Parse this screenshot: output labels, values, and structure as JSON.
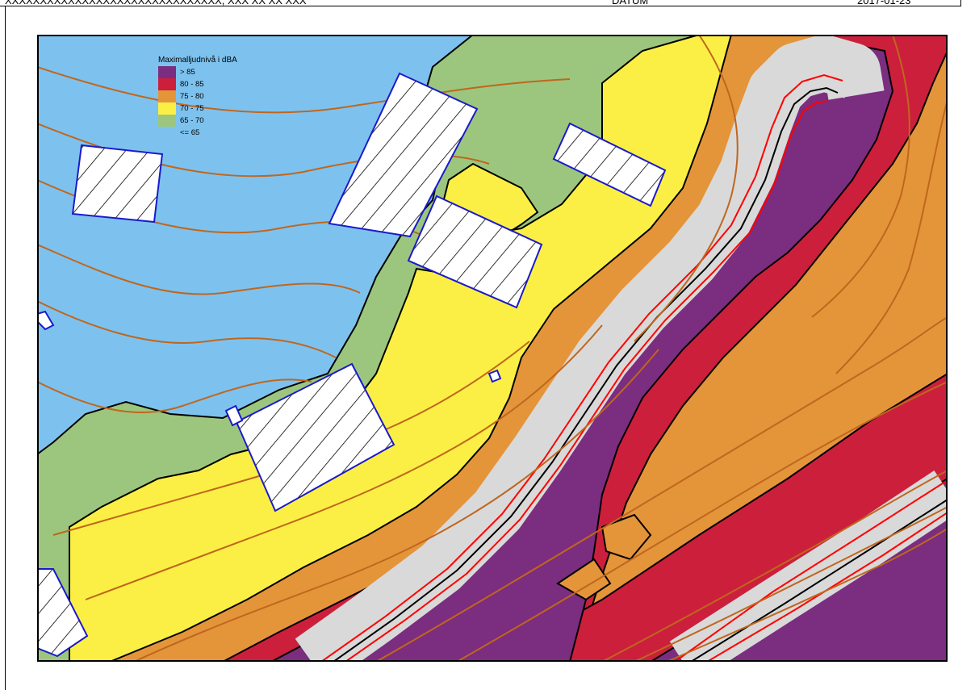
{
  "header": {
    "left_text": "XXXXXXXXXXXXXXXXXXXXXXXXXXXXXXX, XXX XX XX XXX",
    "middle_text": "DATUM",
    "right_text": "2017-01-23"
  },
  "legend": {
    "title": "Maximalljudnivå i dBA",
    "items": [
      {
        "label": "> 85",
        "color": "#7b2d7f"
      },
      {
        "label": "80 - 85",
        "color": "#cc1f3c"
      },
      {
        "label": "75 - 80",
        "color": "#e4953a"
      },
      {
        "label": "70 - 75",
        "color": "#fbef45"
      },
      {
        "label": "65 - 70",
        "color": "#9cc67d"
      },
      {
        "label": "<= 65",
        "color": "#7dc2ee"
      }
    ]
  },
  "map_colors": {
    "road_light_gray": "#d9d9d9",
    "road_red_line": "#ff0000",
    "contour_brown": "#c0661e",
    "building_outline": "#1a1acc"
  }
}
